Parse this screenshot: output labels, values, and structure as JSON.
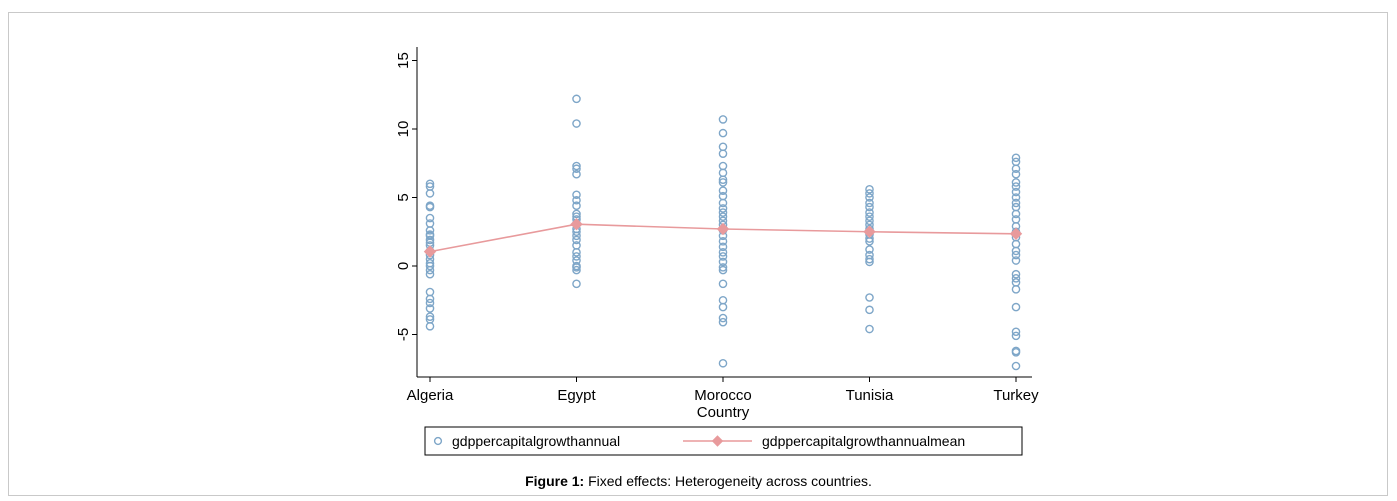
{
  "caption": {
    "label": "Figure 1:",
    "text": "Fixed effects: Heterogeneity across countries."
  },
  "colors": {
    "points": "#7ea6c8",
    "mean": "#e89a9c"
  },
  "chart_data": {
    "type": "scatter",
    "xlabel": "Country",
    "ylabel": "",
    "categories": [
      "Algeria",
      "Egypt",
      "Morocco",
      "Tunisia",
      "Turkey"
    ],
    "yticks": [
      -5,
      0,
      5,
      10,
      15
    ],
    "ylim": [
      -7.5,
      15.7
    ],
    "legend_position": "bottom",
    "series": [
      {
        "name": "gdppercapitalgrowthannual",
        "kind": "points",
        "values": [
          [
            6.0,
            5.8,
            5.3,
            4.4,
            4.3,
            3.5,
            3.1,
            2.6,
            2.3,
            2.2,
            1.9,
            1.7,
            1.5,
            1.1,
            0.8,
            0.5,
            0.2,
            0.0,
            -0.3,
            -0.6,
            -1.9,
            -2.4,
            -2.7,
            -3.1,
            -3.7,
            -3.9,
            -4.4
          ],
          [
            12.2,
            10.4,
            7.3,
            7.1,
            6.7,
            5.2,
            4.8,
            4.4,
            3.8,
            3.6,
            3.4,
            3.1,
            2.7,
            2.5,
            2.2,
            1.9,
            1.5,
            1.0,
            0.7,
            0.4,
            0.0,
            -0.1,
            -0.3,
            -1.3
          ],
          [
            10.7,
            9.7,
            8.7,
            8.2,
            7.3,
            6.8,
            6.3,
            6.1,
            5.5,
            5.1,
            4.6,
            4.2,
            3.9,
            3.6,
            3.3,
            3.0,
            2.6,
            2.2,
            1.8,
            1.4,
            1.0,
            0.7,
            0.3,
            -0.1,
            -0.3,
            -1.3,
            -2.5,
            -3.0,
            -3.8,
            -4.1,
            -7.1
          ],
          [
            5.6,
            5.3,
            5.0,
            4.6,
            4.3,
            3.9,
            3.6,
            3.3,
            3.0,
            2.7,
            2.5,
            2.3,
            2.0,
            1.8,
            1.2,
            0.8,
            0.5,
            0.3,
            -2.3,
            -3.2,
            -4.6
          ],
          [
            7.9,
            7.6,
            7.1,
            6.7,
            6.1,
            5.8,
            5.4,
            5.0,
            4.6,
            4.3,
            3.8,
            3.4,
            2.9,
            2.5,
            2.1,
            1.6,
            1.1,
            0.8,
            0.4,
            -0.6,
            -0.9,
            -1.2,
            -1.7,
            -3.0,
            -4.8,
            -5.1,
            -6.2,
            -6.3,
            -7.3
          ]
        ]
      },
      {
        "name": "gdppercapitalgrowthannualmean",
        "kind": "line-marker",
        "values": [
          1.05,
          3.05,
          2.7,
          2.5,
          2.35
        ]
      }
    ]
  }
}
